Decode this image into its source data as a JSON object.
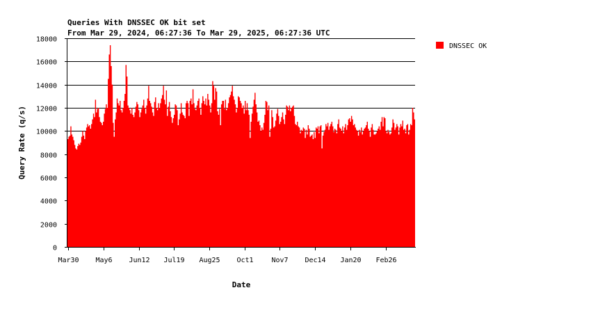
{
  "chart_data": {
    "type": "area",
    "title": "Queries With DNSSEC OK bit set",
    "subtitle": "From Mar 29, 2024, 06:27:36 To Mar 29, 2025, 06:27:36 UTC",
    "xlabel": "Date",
    "ylabel": "Query Rate (q/s)",
    "ylim": [
      0,
      18000
    ],
    "yticks": [
      0,
      2000,
      4000,
      6000,
      8000,
      10000,
      12000,
      14000,
      16000,
      18000
    ],
    "xticks": [
      {
        "label": "Mar30",
        "day": 1
      },
      {
        "label": "May6",
        "day": 38
      },
      {
        "label": "Jun12",
        "day": 75
      },
      {
        "label": "Jul19",
        "day": 112
      },
      {
        "label": "Aug25",
        "day": 149
      },
      {
        "label": "Oct1",
        "day": 186
      },
      {
        "label": "Nov7",
        "day": 223
      },
      {
        "label": "Dec14",
        "day": 260
      },
      {
        "label": "Jan20",
        "day": 297
      },
      {
        "label": "Feb26",
        "day": 334
      }
    ],
    "xlim": [
      0,
      365
    ],
    "grid": "horizontal",
    "legend_position": "top-right",
    "series": [
      {
        "name": "DNSSEC OK",
        "color": "#ff0000",
        "values": [
          9300,
          9500,
          9600,
          10400,
          9700,
          9500,
          9200,
          8800,
          8500,
          8400,
          8700,
          8900,
          8800,
          9000,
          9500,
          10000,
          9600,
          9300,
          10000,
          10300,
          10600,
          10400,
          10500,
          10200,
          10600,
          11000,
          11500,
          11200,
          12700,
          11600,
          11900,
          12000,
          11200,
          10800,
          10700,
          10500,
          10800,
          11500,
          11900,
          12300,
          12000,
          14500,
          16600,
          17400,
          15600,
          14000,
          10700,
          9500,
          11000,
          11600,
          12800,
          12400,
          12200,
          12600,
          11800,
          11600,
          12000,
          12600,
          13200,
          15700,
          14700,
          12200,
          12000,
          11800,
          11500,
          12000,
          11400,
          11200,
          11600,
          12100,
          12500,
          12300,
          11800,
          11200,
          11600,
          11900,
          12200,
          12700,
          12000,
          11500,
          12200,
          12800,
          13900,
          12600,
          12400,
          12100,
          11600,
          11300,
          12500,
          12900,
          12000,
          11800,
          12400,
          12000,
          12400,
          12800,
          13100,
          13900,
          12700,
          12300,
          13500,
          11300,
          12100,
          12500,
          11700,
          11200,
          10700,
          11100,
          11400,
          12300,
          12200,
          11800,
          10500,
          11000,
          11500,
          12400,
          11600,
          11400,
          11300,
          11100,
          12400,
          12600,
          12400,
          11300,
          12600,
          12800,
          12300,
          13600,
          12400,
          11900,
          11800,
          12200,
          12600,
          12800,
          12000,
          11400,
          12400,
          13000,
          12600,
          12300,
          12800,
          12200,
          13200,
          12700,
          12200,
          11600,
          12400,
          14300,
          13900,
          12700,
          13700,
          13400,
          11700,
          11400,
          11900,
          10500,
          12300,
          12600,
          12600,
          11900,
          12700,
          11800,
          12000,
          12400,
          12900,
          13100,
          13400,
          13900,
          13000,
          12700,
          12300,
          11600,
          12000,
          13000,
          12900,
          12600,
          12400,
          12000,
          12200,
          11500,
          12600,
          11800,
          12400,
          11800,
          11400,
          9400,
          10800,
          11500,
          12100,
          12700,
          13300,
          12300,
          11600,
          10800,
          10900,
          10500,
          10000,
          10300,
          10100,
          10700,
          11400,
          12600,
          12500,
          11800,
          12200,
          9500,
          10200,
          11800,
          11200,
          10300,
          10400,
          10900,
          11500,
          11900,
          11300,
          10600,
          10800,
          11200,
          11600,
          11000,
          10600,
          11400,
          12200,
          12100,
          11800,
          12200,
          11700,
          12000,
          12100,
          12200,
          11300,
          10600,
          10500,
          10800,
          10400,
          10300,
          9800,
          10100,
          10000,
          10300,
          10200,
          9400,
          10100,
          9700,
          10500,
          10200,
          9500,
          9600,
          9700,
          9300,
          9900,
          9400,
          10300,
          10200,
          10400,
          9800,
          10400,
          10500,
          8500,
          9600,
          9900,
          10100,
          10600,
          10400,
          10700,
          10100,
          10400,
          10600,
          10800,
          10400,
          9900,
          10200,
          10100,
          9800,
          10600,
          11000,
          10300,
          10200,
          10000,
          10400,
          9800,
          10300,
          10600,
          10100,
          10500,
          11000,
          11100,
          10800,
          11300,
          11000,
          10500,
          10600,
          10300,
          10100,
          10000,
          9600,
          10100,
          9900,
          10300,
          9700,
          10000,
          10200,
          10300,
          10500,
          10800,
          10200,
          10000,
          9500,
          10300,
          10600,
          10100,
          9700,
          9700,
          9800,
          10000,
          10200,
          10400,
          10100,
          10800,
          11200,
          10400,
          11200,
          11100,
          10000,
          9800,
          10100,
          9900,
          9700,
          9800,
          10300,
          11000,
          10700,
          10100,
          10300,
          10600,
          10400,
          9700,
          10300,
          10600,
          10400,
          10900,
          10100,
          10200,
          9800,
          10500,
          10600,
          9700,
          10100,
          10600,
          10500,
          12000,
          11600,
          11000
        ]
      }
    ]
  }
}
